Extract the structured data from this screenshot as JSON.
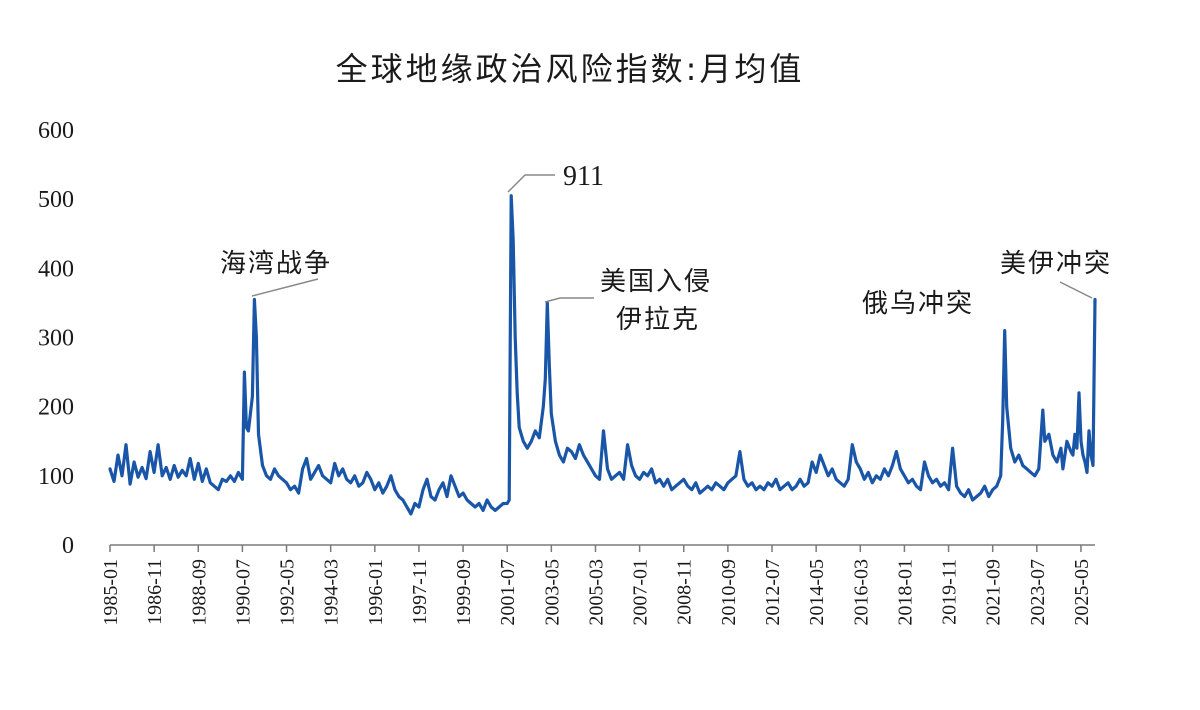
{
  "chart_data": {
    "type": "line",
    "title": "全球地缘政治风险指数:月均值",
    "xlabel": "",
    "ylabel": "",
    "ylim": [
      0,
      600
    ],
    "yticks": [
      "0",
      "100",
      "200",
      "300",
      "400",
      "500",
      "600"
    ],
    "xticks": [
      "1985-01",
      "1986-11",
      "1988-09",
      "1990-07",
      "1992-05",
      "1994-03",
      "1996-01",
      "1997-11",
      "1999-09",
      "2001-07",
      "2003-05",
      "2005-03",
      "2007-01",
      "2008-11",
      "2010-09",
      "2012-07",
      "2014-05",
      "2016-03",
      "2018-01",
      "2019-11",
      "2021-09",
      "2023-07",
      "2025-05"
    ],
    "grid": false,
    "legend": "none",
    "series_color": "#1a56a8",
    "annotations": [
      {
        "text": "海湾战争",
        "date": "1990-10"
      },
      {
        "text": "911",
        "date": "2001-09"
      },
      {
        "text": "美国入侵",
        "text2": "伊拉克",
        "date": "2003-03"
      },
      {
        "text": "俄乌冲突",
        "date": "2022-03"
      },
      {
        "text": "美伊冲突",
        "date": "2025-06"
      }
    ],
    "series": [
      {
        "points": [
          [
            "1985-01",
            110
          ],
          [
            "1985-03",
            92
          ],
          [
            "1985-05",
            130
          ],
          [
            "1985-07",
            100
          ],
          [
            "1985-09",
            145
          ],
          [
            "1985-11",
            88
          ],
          [
            "1986-01",
            120
          ],
          [
            "1986-03",
            98
          ],
          [
            "1986-05",
            112
          ],
          [
            "1986-07",
            96
          ],
          [
            "1986-09",
            135
          ],
          [
            "1986-11",
            105
          ],
          [
            "1987-01",
            145
          ],
          [
            "1987-03",
            100
          ],
          [
            "1987-05",
            112
          ],
          [
            "1987-07",
            95
          ],
          [
            "1987-09",
            115
          ],
          [
            "1987-11",
            98
          ],
          [
            "1988-01",
            108
          ],
          [
            "1988-03",
            100
          ],
          [
            "1988-05",
            125
          ],
          [
            "1988-07",
            95
          ],
          [
            "1988-09",
            118
          ],
          [
            "1988-11",
            92
          ],
          [
            "1989-01",
            110
          ],
          [
            "1989-03",
            90
          ],
          [
            "1989-05",
            85
          ],
          [
            "1989-07",
            80
          ],
          [
            "1989-09",
            95
          ],
          [
            "1989-11",
            92
          ],
          [
            "1990-01",
            100
          ],
          [
            "1990-03",
            92
          ],
          [
            "1990-05",
            105
          ],
          [
            "1990-07",
            95
          ],
          [
            "1990-08",
            250
          ],
          [
            "1990-09",
            170
          ],
          [
            "1990-10",
            165
          ],
          [
            "1990-12",
            215
          ],
          [
            "1991-01",
            355
          ],
          [
            "1991-02",
            300
          ],
          [
            "1991-03",
            160
          ],
          [
            "1991-05",
            115
          ],
          [
            "1991-07",
            100
          ],
          [
            "1991-09",
            95
          ],
          [
            "1991-11",
            110
          ],
          [
            "1992-01",
            100
          ],
          [
            "1992-03",
            95
          ],
          [
            "1992-05",
            90
          ],
          [
            "1992-07",
            80
          ],
          [
            "1992-09",
            85
          ],
          [
            "1992-11",
            75
          ],
          [
            "1993-01",
            110
          ],
          [
            "1993-03",
            125
          ],
          [
            "1993-05",
            95
          ],
          [
            "1993-07",
            105
          ],
          [
            "1993-09",
            115
          ],
          [
            "1993-11",
            100
          ],
          [
            "1994-01",
            95
          ],
          [
            "1994-03",
            90
          ],
          [
            "1994-05",
            118
          ],
          [
            "1994-07",
            100
          ],
          [
            "1994-09",
            110
          ],
          [
            "1994-11",
            95
          ],
          [
            "1995-01",
            90
          ],
          [
            "1995-03",
            100
          ],
          [
            "1995-05",
            85
          ],
          [
            "1995-07",
            90
          ],
          [
            "1995-09",
            105
          ],
          [
            "1995-11",
            95
          ],
          [
            "1996-01",
            80
          ],
          [
            "1996-03",
            90
          ],
          [
            "1996-05",
            75
          ],
          [
            "1996-07",
            85
          ],
          [
            "1996-09",
            100
          ],
          [
            "1996-11",
            80
          ],
          [
            "1997-01",
            70
          ],
          [
            "1997-03",
            65
          ],
          [
            "1997-05",
            55
          ],
          [
            "1997-07",
            45
          ],
          [
            "1997-09",
            60
          ],
          [
            "1997-11",
            55
          ],
          [
            "1998-01",
            80
          ],
          [
            "1998-03",
            95
          ],
          [
            "1998-05",
            70
          ],
          [
            "1998-07",
            65
          ],
          [
            "1998-09",
            80
          ],
          [
            "1998-11",
            90
          ],
          [
            "1999-01",
            70
          ],
          [
            "1999-03",
            100
          ],
          [
            "1999-05",
            85
          ],
          [
            "1999-07",
            70
          ],
          [
            "1999-09",
            75
          ],
          [
            "1999-11",
            65
          ],
          [
            "2000-01",
            60
          ],
          [
            "2000-03",
            55
          ],
          [
            "2000-05",
            60
          ],
          [
            "2000-07",
            50
          ],
          [
            "2000-09",
            65
          ],
          [
            "2000-11",
            55
          ],
          [
            "2001-01",
            50
          ],
          [
            "2001-03",
            55
          ],
          [
            "2001-05",
            60
          ],
          [
            "2001-07",
            60
          ],
          [
            "2001-08",
            65
          ],
          [
            "2001-09",
            505
          ],
          [
            "2001-10",
            440
          ],
          [
            "2001-11",
            300
          ],
          [
            "2001-12",
            220
          ],
          [
            "2002-01",
            170
          ],
          [
            "2002-03",
            150
          ],
          [
            "2002-05",
            140
          ],
          [
            "2002-07",
            150
          ],
          [
            "2002-09",
            165
          ],
          [
            "2002-11",
            155
          ],
          [
            "2003-01",
            200
          ],
          [
            "2003-02",
            240
          ],
          [
            "2003-03",
            350
          ],
          [
            "2003-04",
            260
          ],
          [
            "2003-05",
            190
          ],
          [
            "2003-07",
            150
          ],
          [
            "2003-09",
            130
          ],
          [
            "2003-11",
            120
          ],
          [
            "2004-01",
            140
          ],
          [
            "2004-03",
            135
          ],
          [
            "2004-05",
            125
          ],
          [
            "2004-07",
            145
          ],
          [
            "2004-09",
            130
          ],
          [
            "2004-11",
            120
          ],
          [
            "2005-01",
            110
          ],
          [
            "2005-03",
            100
          ],
          [
            "2005-05",
            95
          ],
          [
            "2005-07",
            165
          ],
          [
            "2005-09",
            110
          ],
          [
            "2005-11",
            95
          ],
          [
            "2006-01",
            100
          ],
          [
            "2006-03",
            105
          ],
          [
            "2006-05",
            95
          ],
          [
            "2006-07",
            145
          ],
          [
            "2006-09",
            115
          ],
          [
            "2006-11",
            100
          ],
          [
            "2007-01",
            95
          ],
          [
            "2007-03",
            105
          ],
          [
            "2007-05",
            100
          ],
          [
            "2007-07",
            110
          ],
          [
            "2007-09",
            90
          ],
          [
            "2007-11",
            95
          ],
          [
            "2008-01",
            85
          ],
          [
            "2008-03",
            95
          ],
          [
            "2008-05",
            80
          ],
          [
            "2008-07",
            85
          ],
          [
            "2008-09",
            90
          ],
          [
            "2008-11",
            95
          ],
          [
            "2009-01",
            85
          ],
          [
            "2009-03",
            80
          ],
          [
            "2009-05",
            90
          ],
          [
            "2009-07",
            75
          ],
          [
            "2009-09",
            80
          ],
          [
            "2009-11",
            85
          ],
          [
            "2010-01",
            80
          ],
          [
            "2010-03",
            90
          ],
          [
            "2010-05",
            85
          ],
          [
            "2010-07",
            80
          ],
          [
            "2010-09",
            90
          ],
          [
            "2010-11",
            95
          ],
          [
            "2011-01",
            100
          ],
          [
            "2011-03",
            135
          ],
          [
            "2011-05",
            95
          ],
          [
            "2011-07",
            85
          ],
          [
            "2011-09",
            90
          ],
          [
            "2011-11",
            80
          ],
          [
            "2012-01",
            85
          ],
          [
            "2012-03",
            80
          ],
          [
            "2012-05",
            90
          ],
          [
            "2012-07",
            85
          ],
          [
            "2012-09",
            95
          ],
          [
            "2012-11",
            80
          ],
          [
            "2013-01",
            85
          ],
          [
            "2013-03",
            90
          ],
          [
            "2013-05",
            80
          ],
          [
            "2013-07",
            85
          ],
          [
            "2013-09",
            95
          ],
          [
            "2013-11",
            85
          ],
          [
            "2014-01",
            90
          ],
          [
            "2014-03",
            120
          ],
          [
            "2014-05",
            105
          ],
          [
            "2014-07",
            130
          ],
          [
            "2014-09",
            115
          ],
          [
            "2014-11",
            100
          ],
          [
            "2015-01",
            110
          ],
          [
            "2015-03",
            95
          ],
          [
            "2015-05",
            90
          ],
          [
            "2015-07",
            85
          ],
          [
            "2015-09",
            95
          ],
          [
            "2015-11",
            145
          ],
          [
            "2016-01",
            120
          ],
          [
            "2016-03",
            110
          ],
          [
            "2016-05",
            95
          ],
          [
            "2016-07",
            105
          ],
          [
            "2016-09",
            90
          ],
          [
            "2016-11",
            100
          ],
          [
            "2017-01",
            95
          ],
          [
            "2017-03",
            110
          ],
          [
            "2017-05",
            100
          ],
          [
            "2017-07",
            115
          ],
          [
            "2017-09",
            135
          ],
          [
            "2017-11",
            110
          ],
          [
            "2018-01",
            100
          ],
          [
            "2018-03",
            90
          ],
          [
            "2018-05",
            95
          ],
          [
            "2018-07",
            85
          ],
          [
            "2018-09",
            80
          ],
          [
            "2018-11",
            120
          ],
          [
            "2019-01",
            100
          ],
          [
            "2019-03",
            90
          ],
          [
            "2019-05",
            95
          ],
          [
            "2019-07",
            85
          ],
          [
            "2019-09",
            90
          ],
          [
            "2019-11",
            80
          ],
          [
            "2020-01",
            140
          ],
          [
            "2020-03",
            85
          ],
          [
            "2020-05",
            75
          ],
          [
            "2020-07",
            70
          ],
          [
            "2020-09",
            80
          ],
          [
            "2020-11",
            65
          ],
          [
            "2021-01",
            70
          ],
          [
            "2021-03",
            75
          ],
          [
            "2021-05",
            85
          ],
          [
            "2021-07",
            70
          ],
          [
            "2021-09",
            80
          ],
          [
            "2021-11",
            85
          ],
          [
            "2022-01",
            100
          ],
          [
            "2022-02",
            180
          ],
          [
            "2022-03",
            310
          ],
          [
            "2022-04",
            200
          ],
          [
            "2022-06",
            140
          ],
          [
            "2022-08",
            120
          ],
          [
            "2022-10",
            130
          ],
          [
            "2022-12",
            115
          ],
          [
            "2023-02",
            110
          ],
          [
            "2023-04",
            105
          ],
          [
            "2023-06",
            100
          ],
          [
            "2023-08",
            110
          ],
          [
            "2023-10",
            195
          ],
          [
            "2023-11",
            150
          ],
          [
            "2024-01",
            160
          ],
          [
            "2024-03",
            130
          ],
          [
            "2024-05",
            120
          ],
          [
            "2024-07",
            140
          ],
          [
            "2024-08",
            110
          ],
          [
            "2024-10",
            150
          ],
          [
            "2024-12",
            135
          ],
          [
            "2025-01",
            130
          ],
          [
            "2025-02",
            160
          ],
          [
            "2025-03",
            140
          ],
          [
            "2025-04",
            220
          ],
          [
            "2025-05",
            150
          ],
          [
            "2025-06",
            130
          ],
          [
            "2025-07",
            120
          ],
          [
            "2025-08",
            105
          ],
          [
            "2025-09",
            165
          ],
          [
            "2025-10",
            130
          ],
          [
            "2025-11",
            115
          ],
          [
            "2025-12",
            355
          ]
        ]
      }
    ]
  }
}
